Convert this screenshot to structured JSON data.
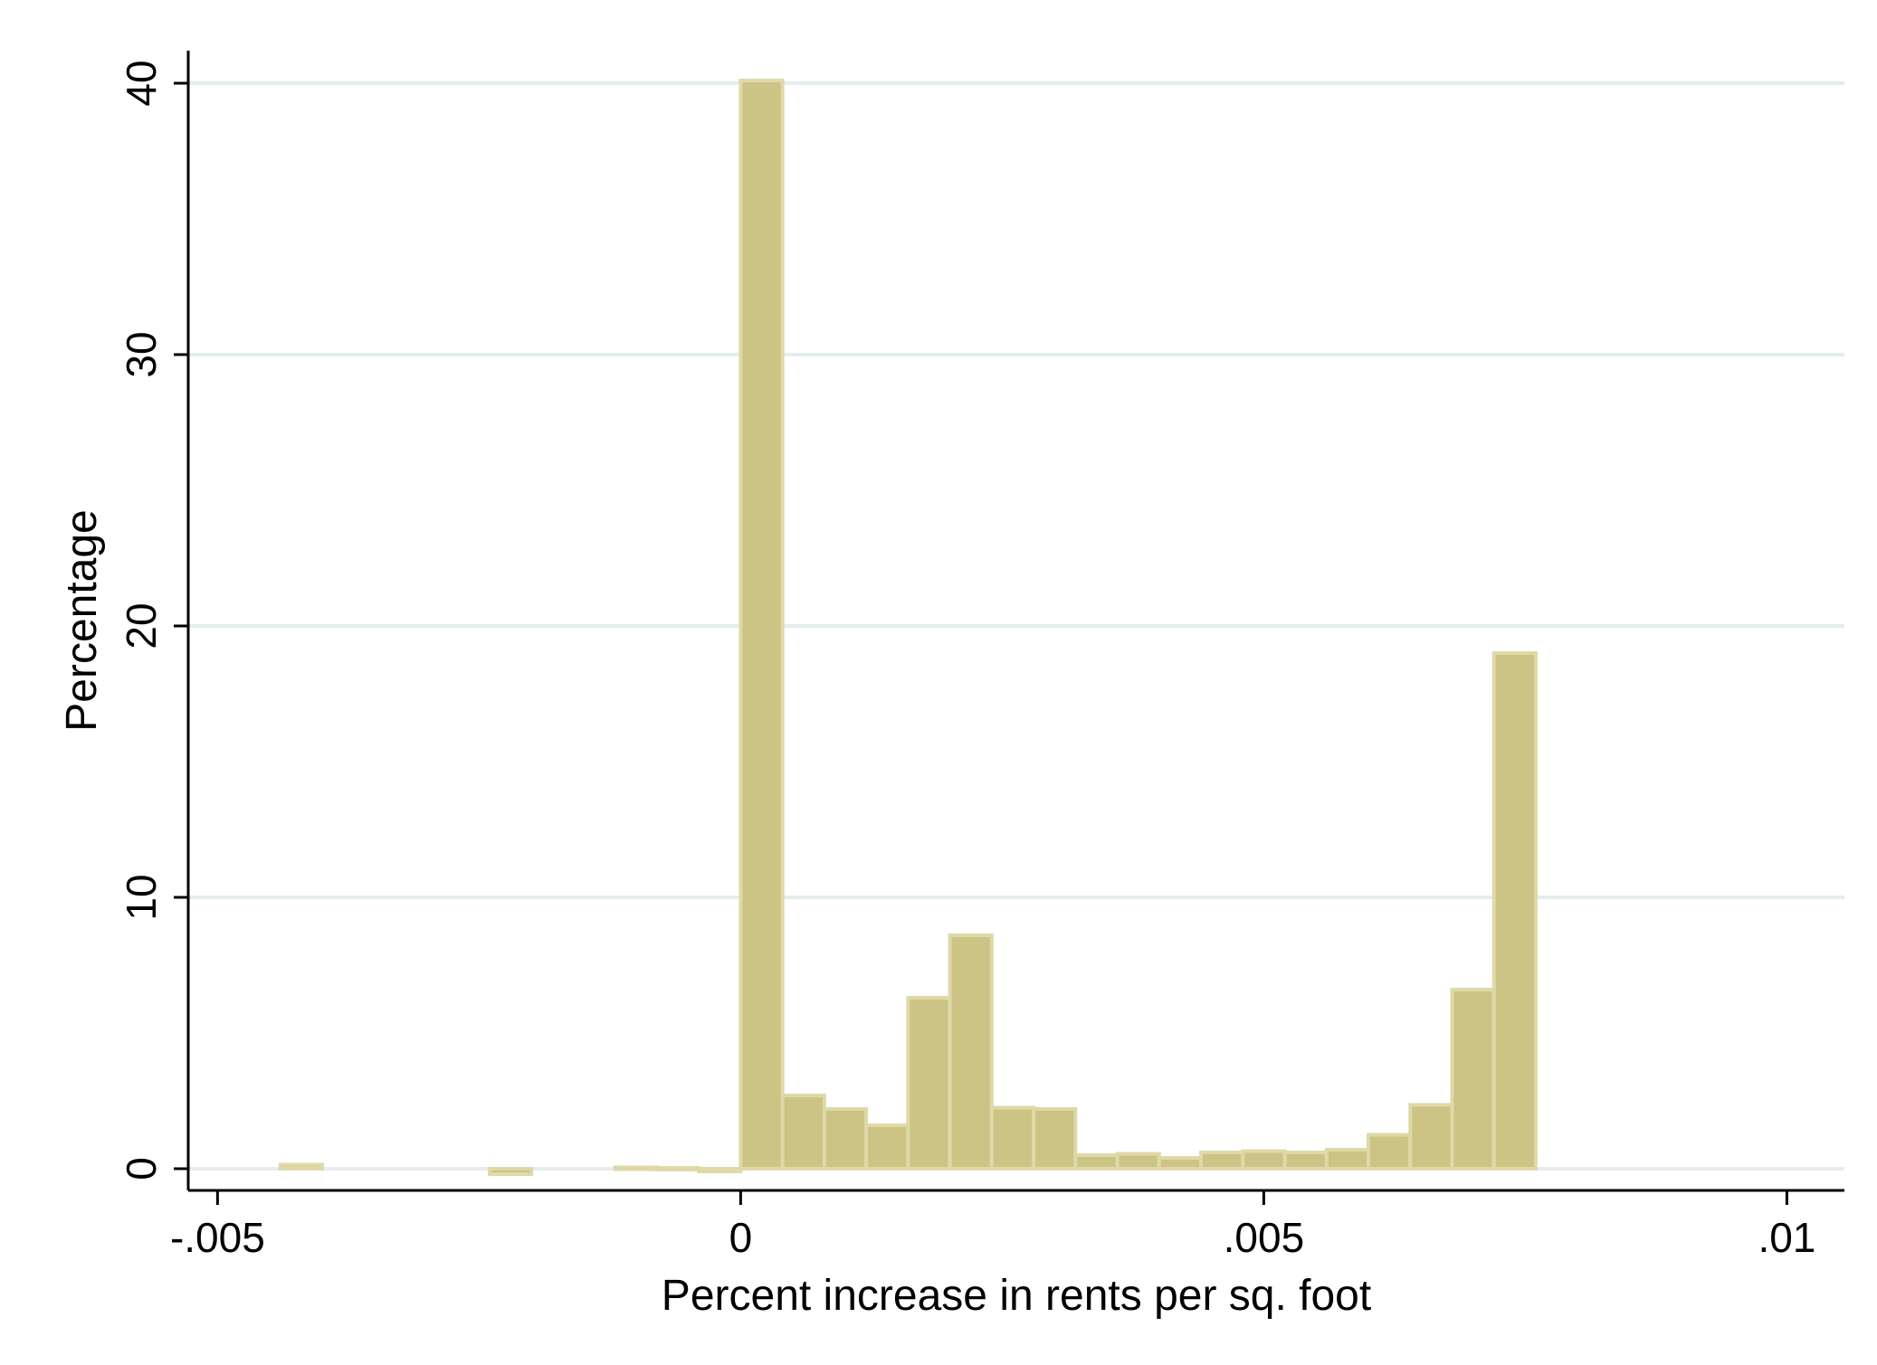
{
  "chart_data": {
    "type": "bar",
    "title": "",
    "xlabel": "Percent increase in rents per sq. foot",
    "ylabel": "Percentage",
    "xlim": [
      -0.00528,
      0.01055
    ],
    "ylim": [
      -0.8,
      41.2
    ],
    "xticks": [
      {
        "value": -0.005,
        "label": "-.005"
      },
      {
        "value": 0,
        "label": "0"
      },
      {
        "value": 0.005,
        "label": ".005"
      },
      {
        "value": 0.01,
        "label": ".01"
      }
    ],
    "yticks": [
      {
        "value": 0,
        "label": "0"
      },
      {
        "value": 10,
        "label": "10"
      },
      {
        "value": 20,
        "label": "20"
      },
      {
        "value": 30,
        "label": "30"
      },
      {
        "value": 40,
        "label": "40"
      }
    ],
    "grid": true,
    "bin_width": 0.0004,
    "series": [
      {
        "name": "Percentage",
        "bins": [
          {
            "x": -0.0044,
            "value": 0.15
          },
          {
            "x": -0.0024,
            "value": -0.2
          },
          {
            "x": -0.0012,
            "value": 0.05
          },
          {
            "x": -0.0008,
            "value": 0.03
          },
          {
            "x": -0.0004,
            "value": -0.1
          },
          {
            "x": 0.0,
            "value": 40.1
          },
          {
            "x": 0.0004,
            "value": 2.7
          },
          {
            "x": 0.0008,
            "value": 2.2
          },
          {
            "x": 0.0012,
            "value": 1.6
          },
          {
            "x": 0.0016,
            "value": 6.3
          },
          {
            "x": 0.002,
            "value": 8.6
          },
          {
            "x": 0.0024,
            "value": 2.25
          },
          {
            "x": 0.0028,
            "value": 2.2
          },
          {
            "x": 0.0032,
            "value": 0.5
          },
          {
            "x": 0.0036,
            "value": 0.55
          },
          {
            "x": 0.004,
            "value": 0.4
          },
          {
            "x": 0.0044,
            "value": 0.6
          },
          {
            "x": 0.0048,
            "value": 0.65
          },
          {
            "x": 0.0052,
            "value": 0.6
          },
          {
            "x": 0.0056,
            "value": 0.7
          },
          {
            "x": 0.006,
            "value": 1.25
          },
          {
            "x": 0.0064,
            "value": 2.35
          },
          {
            "x": 0.0068,
            "value": 6.6
          },
          {
            "x": 0.0072,
            "value": 19.0
          }
        ]
      }
    ],
    "colors": {
      "bar_fill": "#ccc484",
      "bar_edge": "#dfd9a8",
      "grid": "#e6edee",
      "axis": "#000000"
    }
  }
}
